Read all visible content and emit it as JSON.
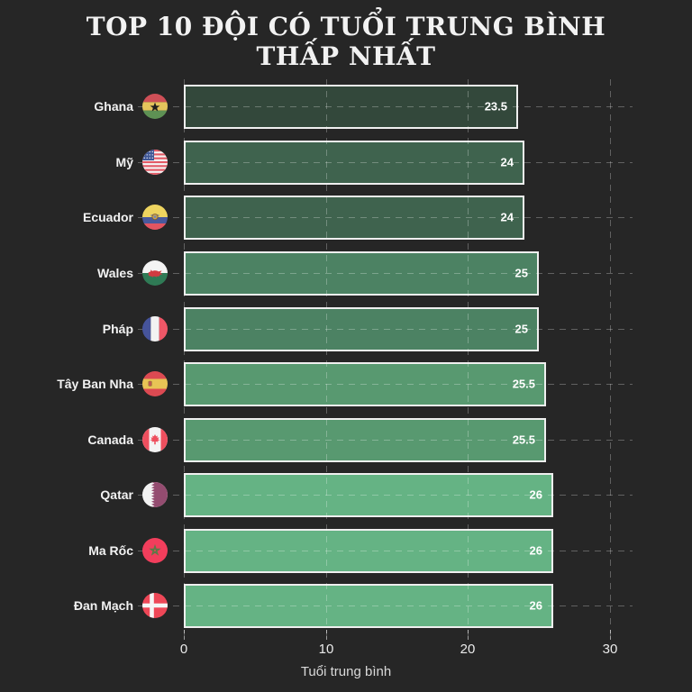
{
  "title": {
    "lines": [
      "TOP 10 ĐỘI CÓ TUỔI TRUNG BÌNH",
      "THẤP NHẤT"
    ]
  },
  "chart_data": {
    "type": "bar",
    "orientation": "horizontal",
    "title": "TOP 10 ĐỘI CÓ TUỔI TRUNG BÌNH THẤP NHẤT",
    "xlabel": "Tuổi trung bình",
    "xlim": [
      0,
      30
    ],
    "x_ticks": [
      0,
      10,
      20,
      30
    ],
    "x_tick_labels": [
      "0",
      "10",
      "20",
      "30"
    ],
    "grid": "dashed",
    "legend": "none",
    "categories": [
      "Ghana",
      "Mỹ",
      "Ecuador",
      "Wales",
      "Pháp",
      "Tây Ban Nha",
      "Canada",
      "Qatar",
      "Ma Rốc",
      "Đan Mạch"
    ],
    "values": [
      23.5,
      24,
      24,
      25,
      25,
      25.5,
      25.5,
      26,
      26,
      26
    ],
    "value_labels": [
      "23.5",
      "24",
      "24",
      "25",
      "25",
      "25.5",
      "25.5",
      "26",
      "26",
      "26"
    ],
    "flags": [
      "ghana",
      "usa",
      "ecuador",
      "wales",
      "france",
      "spain",
      "canada",
      "qatar",
      "morocco",
      "denmark"
    ],
    "bar_colors": [
      "#33483B",
      "#3F634E",
      "#3F634E",
      "#4C8263",
      "#4C8263",
      "#589970",
      "#589970",
      "#65B384",
      "#65B384",
      "#65B384"
    ],
    "colors": {
      "background": "#262626",
      "bar_border": "#EFEFEF",
      "text": "#F2F2F2",
      "grid": "#555555"
    }
  }
}
